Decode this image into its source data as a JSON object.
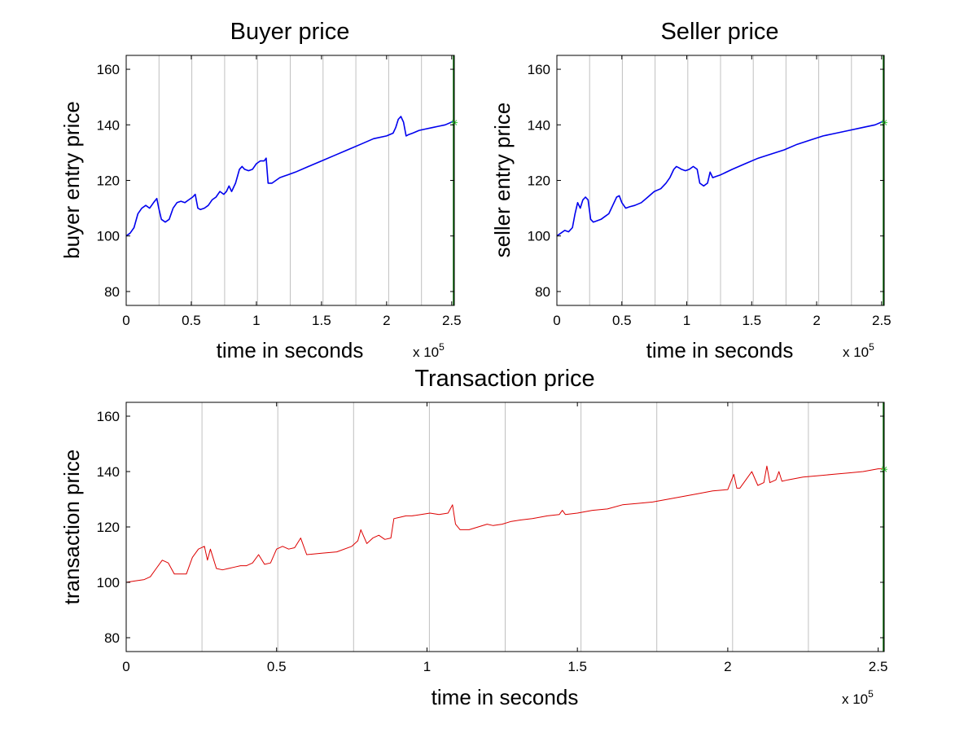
{
  "chart_data": [
    {
      "type": "line",
      "title": "Buyer price",
      "xlabel": "time in seconds",
      "ylabel": "buyer entry price",
      "x_multiplier": {
        "base": "x 10",
        "exponent": "5"
      },
      "xlim": [
        0,
        252000
      ],
      "ylim": [
        75,
        165
      ],
      "xticks": [
        0,
        50000,
        100000,
        150000,
        200000,
        250000
      ],
      "xtick_labels": [
        "0",
        "0.5",
        "1",
        "1.5",
        "2",
        "2.5"
      ],
      "yticks": [
        80,
        100,
        120,
        140,
        160
      ],
      "ytick_labels": [
        "80",
        "100",
        "120",
        "140",
        "160"
      ],
      "gridlines_x": [
        25200,
        50400,
        75600,
        100800,
        126000,
        151200,
        176400,
        201600,
        226800
      ],
      "grid_color": "#c0c0c0",
      "series_color": "#0000ee",
      "marker_color": "#33cc33",
      "marker": {
        "x": 252000,
        "y": 140.8
      },
      "series": [
        {
          "x": [
            0,
            3000,
            6000,
            9000,
            12000,
            15000,
            18000,
            21000,
            23500,
            25000,
            27000,
            30000,
            33000,
            36000,
            39000,
            42000,
            45000,
            48000,
            51000,
            53000,
            55000,
            57000,
            60000,
            63000,
            66000,
            69000,
            72000,
            75000,
            77000,
            79000,
            81000,
            84000,
            87000,
            89000,
            91000,
            94000,
            97000,
            100000,
            103000,
            106000,
            107500,
            109000,
            112000,
            115000,
            118000,
            121000,
            124000,
            130000,
            140000,
            150000,
            160000,
            170000,
            180000,
            190000,
            200000,
            205000,
            207000,
            209000,
            211000,
            213000,
            215000,
            217000,
            220000,
            225000,
            230000,
            235000,
            240000,
            245000,
            250000,
            252000
          ],
          "y": [
            100,
            101,
            103,
            108,
            110,
            111,
            110,
            112,
            113.5,
            110,
            106,
            105,
            106,
            110,
            112,
            112.5,
            112,
            113,
            114,
            115,
            110,
            109.5,
            110,
            111,
            113,
            114,
            116,
            115,
            116,
            118,
            116,
            119,
            124,
            125,
            124,
            123.5,
            124,
            126,
            127,
            127,
            128,
            119,
            119,
            120,
            121,
            121.5,
            122,
            123,
            125,
            127,
            129,
            131,
            133,
            135,
            136,
            137,
            139,
            142,
            143,
            141,
            136,
            136.5,
            137,
            138,
            138.5,
            139,
            139.5,
            140,
            141,
            141
          ]
        }
      ]
    },
    {
      "type": "line",
      "title": "Seller price",
      "xlabel": "time in seconds",
      "ylabel": "seller entry price",
      "x_multiplier": {
        "base": "x 10",
        "exponent": "5"
      },
      "xlim": [
        0,
        252000
      ],
      "ylim": [
        75,
        165
      ],
      "xticks": [
        0,
        50000,
        100000,
        150000,
        200000,
        250000
      ],
      "xtick_labels": [
        "0",
        "0.5",
        "1",
        "1.5",
        "2",
        "2.5"
      ],
      "yticks": [
        80,
        100,
        120,
        140,
        160
      ],
      "ytick_labels": [
        "80",
        "100",
        "120",
        "140",
        "160"
      ],
      "gridlines_x": [
        25200,
        50400,
        75600,
        100800,
        126000,
        151200,
        176400,
        201600,
        226800
      ],
      "grid_color": "#c0c0c0",
      "series_color": "#0000ee",
      "marker_color": "#33cc33",
      "marker": {
        "x": 252000,
        "y": 140.8
      },
      "series": [
        {
          "x": [
            0,
            3000,
            6000,
            9000,
            12000,
            14000,
            16000,
            18000,
            20000,
            22000,
            24000,
            26000,
            28000,
            31000,
            34000,
            37000,
            40000,
            43000,
            46000,
            48000,
            50000,
            53000,
            56000,
            60000,
            65000,
            70000,
            75000,
            80000,
            84000,
            87000,
            90000,
            92000,
            94000,
            96000,
            99000,
            102000,
            105000,
            108000,
            110000,
            113000,
            116000,
            118000,
            120000,
            123000,
            126000,
            135000,
            145000,
            155000,
            165000,
            175000,
            185000,
            195000,
            205000,
            215000,
            225000,
            235000,
            245000,
            250000,
            252000
          ],
          "y": [
            100,
            101,
            102,
            101.5,
            103,
            108,
            112,
            110,
            113,
            114,
            113,
            106,
            105,
            105.5,
            106,
            107,
            108,
            111,
            114,
            114.5,
            112,
            110,
            110.5,
            111,
            112,
            114,
            116,
            117,
            119,
            121,
            124,
            125,
            124.5,
            124,
            123.5,
            124,
            125,
            124,
            119,
            118,
            119,
            123,
            121,
            121.5,
            122,
            124,
            126,
            128,
            129.5,
            131,
            133,
            134.5,
            136,
            137,
            138,
            139,
            140,
            141,
            141
          ]
        }
      ]
    },
    {
      "type": "line",
      "title": "Transaction price",
      "xlabel": "time in seconds",
      "ylabel": "transaction price",
      "x_multiplier": {
        "base": "x 10",
        "exponent": "5"
      },
      "xlim": [
        0,
        252000
      ],
      "ylim": [
        75,
        165
      ],
      "xticks": [
        0,
        50000,
        100000,
        150000,
        200000,
        250000
      ],
      "xtick_labels": [
        "0",
        "0.5",
        "1",
        "1.5",
        "2",
        "2.5"
      ],
      "yticks": [
        80,
        100,
        120,
        140,
        160
      ],
      "ytick_labels": [
        "80",
        "100",
        "120",
        "140",
        "160"
      ],
      "gridlines_x": [
        25200,
        50400,
        75600,
        100800,
        126000,
        151200,
        176400,
        201600,
        226800
      ],
      "grid_color": "#c0c0c0",
      "series_color": "#dd0000",
      "marker_color": "#33cc33",
      "marker": {
        "x": 252000,
        "y": 140.8
      },
      "series": [
        {
          "x": [
            0,
            3000,
            6000,
            8000,
            10000,
            12000,
            14000,
            16000,
            18000,
            20000,
            22000,
            24000,
            26000,
            27000,
            28000,
            30000,
            32000,
            34000,
            36000,
            38000,
            40000,
            42000,
            44000,
            46000,
            48000,
            50000,
            52000,
            54000,
            56000,
            58000,
            60000,
            65000,
            70000,
            75000,
            77000,
            78000,
            80000,
            82000,
            84000,
            86000,
            88000,
            89000,
            91000,
            93000,
            95000,
            98000,
            101000,
            104000,
            107000,
            108500,
            109500,
            111000,
            114000,
            117000,
            120000,
            122000,
            125000,
            128000,
            131000,
            135000,
            140000,
            144000,
            145000,
            146000,
            150000,
            155000,
            160000,
            165000,
            170000,
            175000,
            180000,
            185000,
            190000,
            195000,
            200000,
            202000,
            203000,
            204000,
            206000,
            208000,
            210000,
            212000,
            213000,
            214000,
            216000,
            217000,
            218000,
            220000,
            225000,
            230000,
            235000,
            240000,
            245000,
            250000,
            252000
          ],
          "y": [
            100,
            100.5,
            101,
            102,
            105,
            108,
            107,
            103,
            103,
            103,
            109,
            112,
            113,
            108,
            112,
            105,
            104.5,
            105,
            105.5,
            106,
            106,
            107,
            110,
            106.5,
            107,
            112,
            113,
            112,
            112.5,
            116,
            110,
            110.5,
            111,
            113,
            115,
            119,
            114,
            116,
            117,
            115.5,
            116,
            123,
            123.5,
            124,
            124,
            124.5,
            125,
            124.5,
            125,
            128,
            121,
            119,
            119,
            120,
            121,
            120.5,
            121,
            122,
            122.5,
            123,
            124,
            124.5,
            126,
            124.5,
            125,
            126,
            126.5,
            128,
            128.5,
            129,
            130,
            131,
            132,
            133,
            133.5,
            139,
            134,
            134,
            137,
            140,
            135,
            136,
            142,
            136,
            137,
            140,
            136.5,
            137,
            138,
            138.5,
            139,
            139.5,
            140,
            141,
            141
          ]
        }
      ]
    }
  ]
}
